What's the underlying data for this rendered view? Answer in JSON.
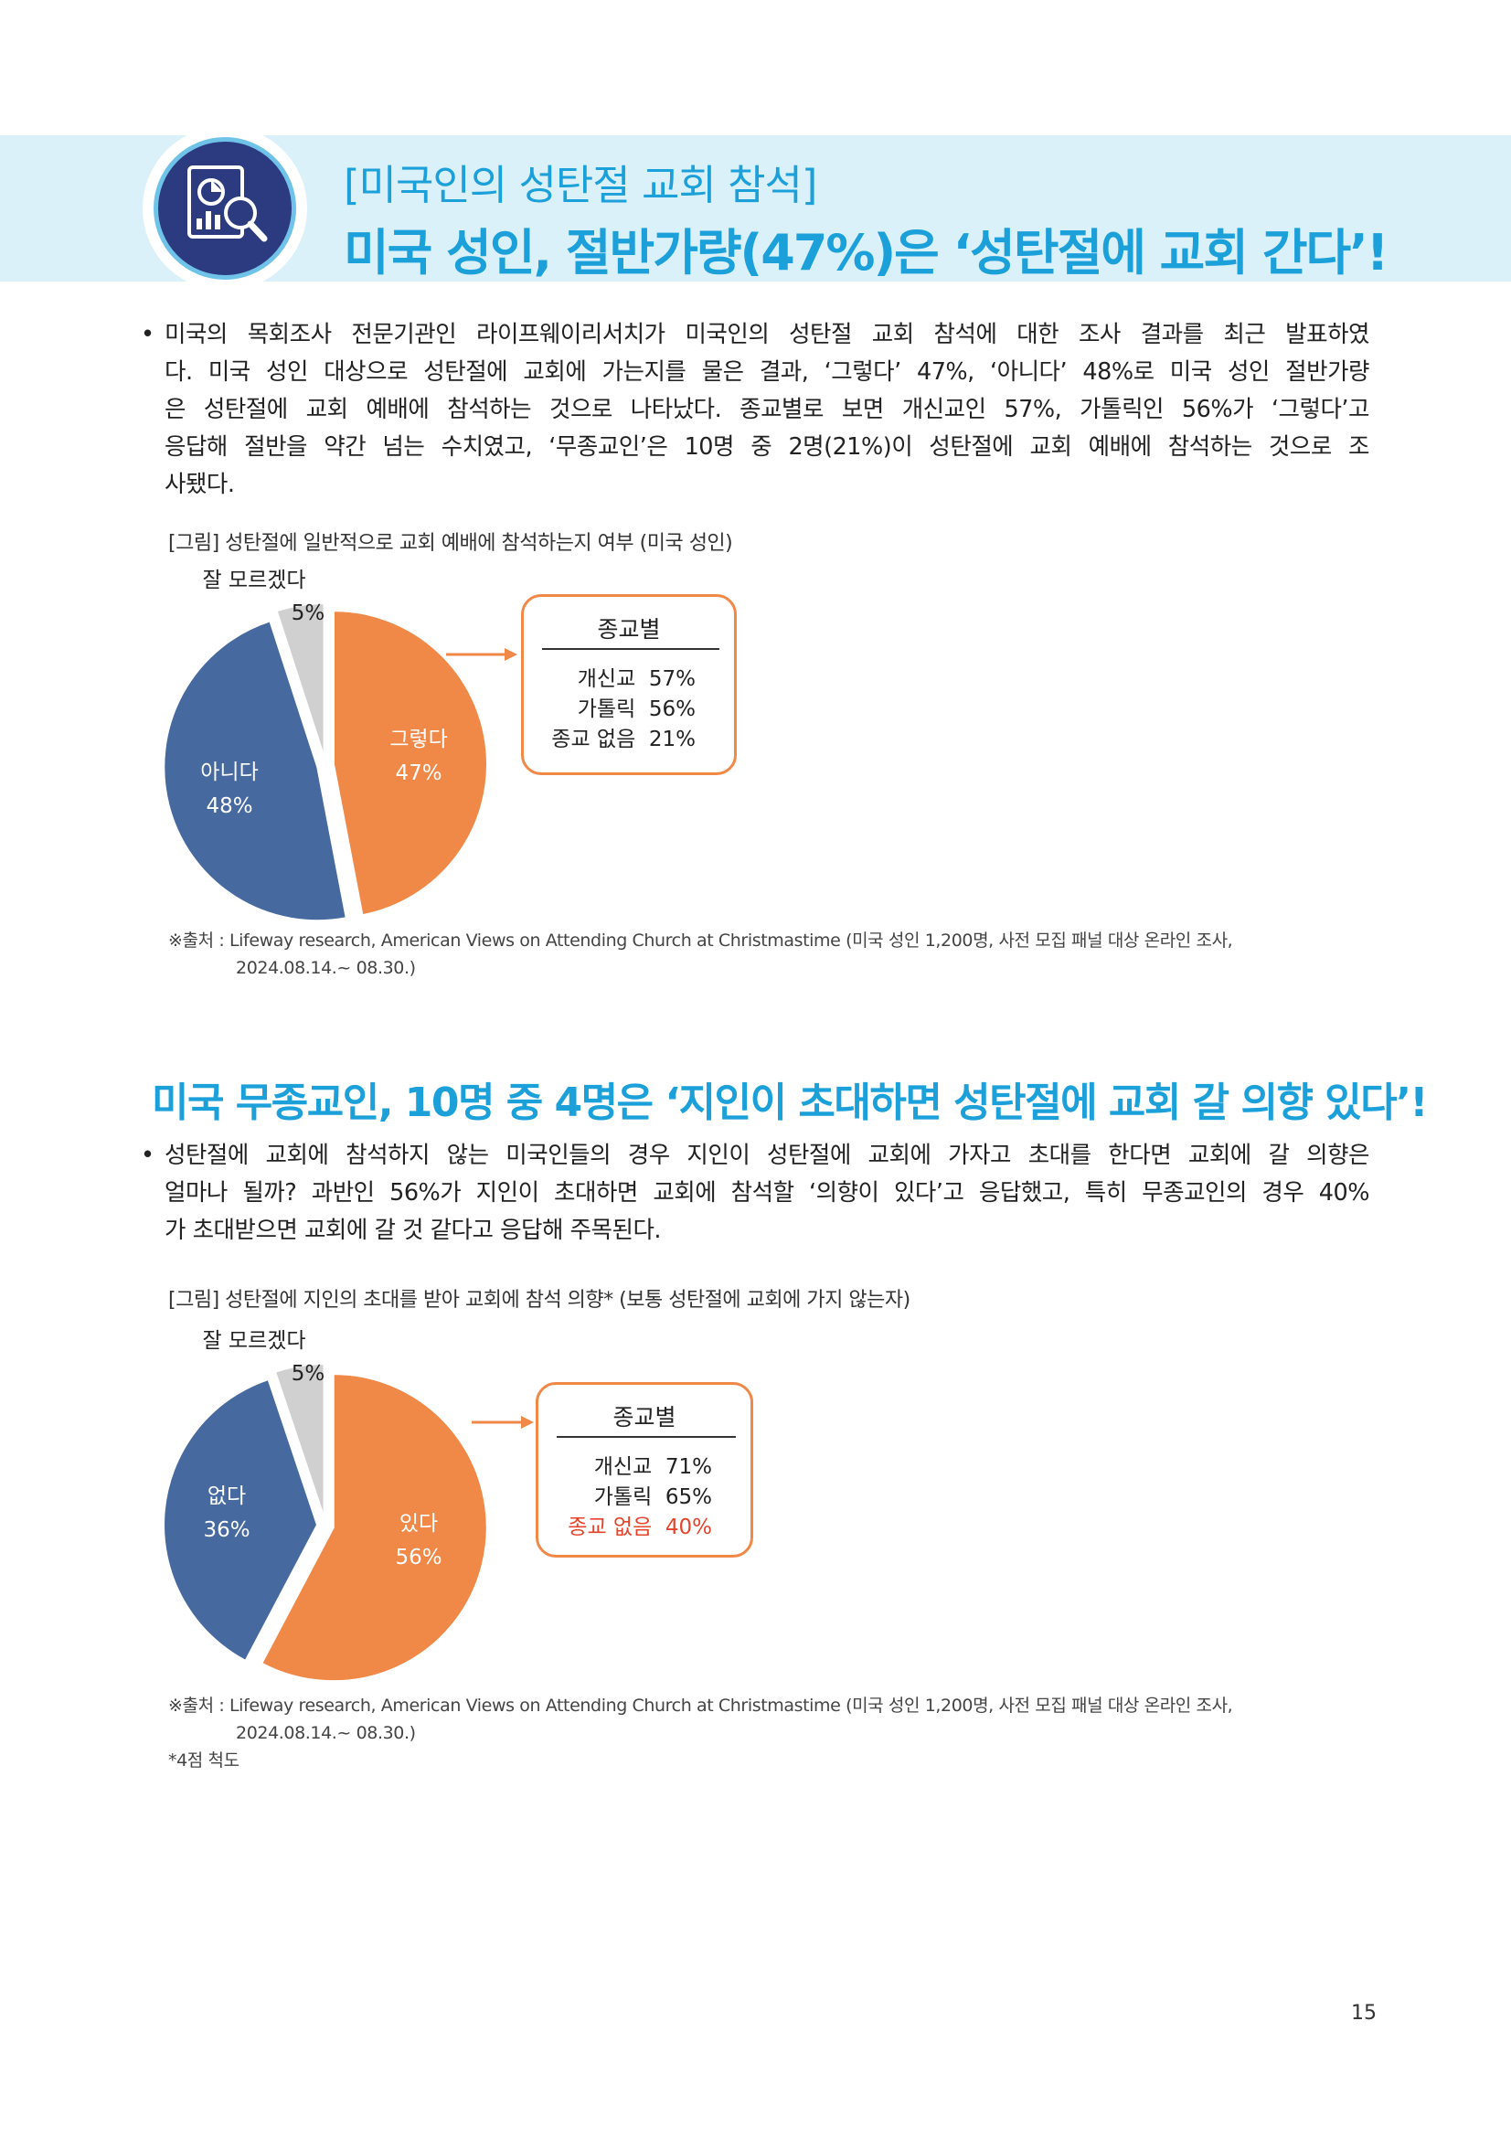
{
  "header": {
    "kicker": "[미국인의 성탄절 교회 참석]",
    "headline": "미국 성인, 절반가량(47%)은 ‘성탄절에 교회 간다’!"
  },
  "section1": {
    "bullet": "•",
    "paragraph_lines": [
      "미국의 목회조사 전문기관인 라이프웨이리서치가 미국인의 성탄절 교회 참석에 대한 조사 결과를 최근 발표하였",
      "다. 미국 성인 대상으로 성탄절에 교회에 가는지를 물은 결과, ‘그렇다’ 47%, ‘아니다’ 48%로 미국 성인 절반가량",
      "은 성탄절에 교회 예배에 참석하는 것으로 나타났다. 종교별로 보면 개신교인 57%, 가톨릭인 56%가 ‘그렇다’고",
      "응답해 절반을 약간 넘는 수치였고, ‘무종교인’은 10명 중 2명(21%)이 성탄절에 교회 예배에 참석하는 것으로 조",
      "사됐다."
    ],
    "figure_caption": "[그림] 성탄절에 일반적으로 교회 예배에 참석하는지 여부 (미국 성인)",
    "box": {
      "title": "종교별",
      "rows": [
        {
          "label": "개신교",
          "value": "57%"
        },
        {
          "label": "가톨릭",
          "value": "56%"
        },
        {
          "label": "종교 없음",
          "value": "21%"
        }
      ]
    },
    "source_lines": [
      "※출처 : Lifeway research, American Views on Attending Church at Christmastime (미국 성인 1,200명, 사전 모집 패널 대상 온라인 조사,",
      "2024.08.14.~ 08.30.)"
    ]
  },
  "section2": {
    "title": "미국 무종교인, 10명 중 4명은 ‘지인이 초대하면 성탄절에 교회 갈 의향 있다’!",
    "bullet": "•",
    "paragraph_lines": [
      "성탄절에 교회에 참석하지 않는 미국인들의 경우 지인이 성탄절에 교회에 가자고 초대를 한다면 교회에 갈 의향은",
      "얼마나 될까? 과반인 56%가 지인이 초대하면 교회에 참석할 ‘의향이 있다’고 응답했고, 특히 무종교인의 경우 40%",
      "가 초대받으면 교회에 갈 것 같다고 응답해 주목된다."
    ],
    "figure_caption": "[그림] 성탄절에 지인의 초대를 받아 교회에 참석 의향* (보통 성탄절에 교회에 가지 않는자)",
    "box": {
      "title": "종교별",
      "rows": [
        {
          "label": "개신교",
          "value": "71%",
          "highlight": false
        },
        {
          "label": "가톨릭",
          "value": "65%",
          "highlight": false
        },
        {
          "label": "종교 없음",
          "value": "40%",
          "highlight": true
        }
      ]
    },
    "source_lines": [
      "※출처 : Lifeway research, American Views on Attending Church at Christmastime (미국 성인 1,200명, 사전 모집 패널 대상 온라인 조사,",
      "2024.08.14.~ 08.30.)"
    ],
    "footnote": "*4점 척도"
  },
  "page_number": "15",
  "colors": {
    "accent": "#1ba0da",
    "orange": "#f08847",
    "blue": "#46699f",
    "gray": "#d0d0d0",
    "highlight_red": "#e2452b"
  },
  "chart_data": [
    {
      "type": "pie",
      "slices": [
        {
          "label": "그렇다",
          "value": 47,
          "display": "47%",
          "color": "#f08847"
        },
        {
          "label": "아니다",
          "value": 48,
          "display": "48%",
          "color": "#46699f"
        },
        {
          "label": "잘 모르겠다",
          "value": 5,
          "display": "5%",
          "color": "#d0d0d0"
        }
      ]
    },
    {
      "type": "pie",
      "slices": [
        {
          "label": "있다",
          "value": 56,
          "display": "56%",
          "color": "#f08847"
        },
        {
          "label": "없다",
          "value": 36,
          "display": "36%",
          "color": "#46699f"
        },
        {
          "label": "잘 모르겠다",
          "value": 5,
          "display": "5%",
          "color": "#d0d0d0"
        }
      ]
    }
  ]
}
